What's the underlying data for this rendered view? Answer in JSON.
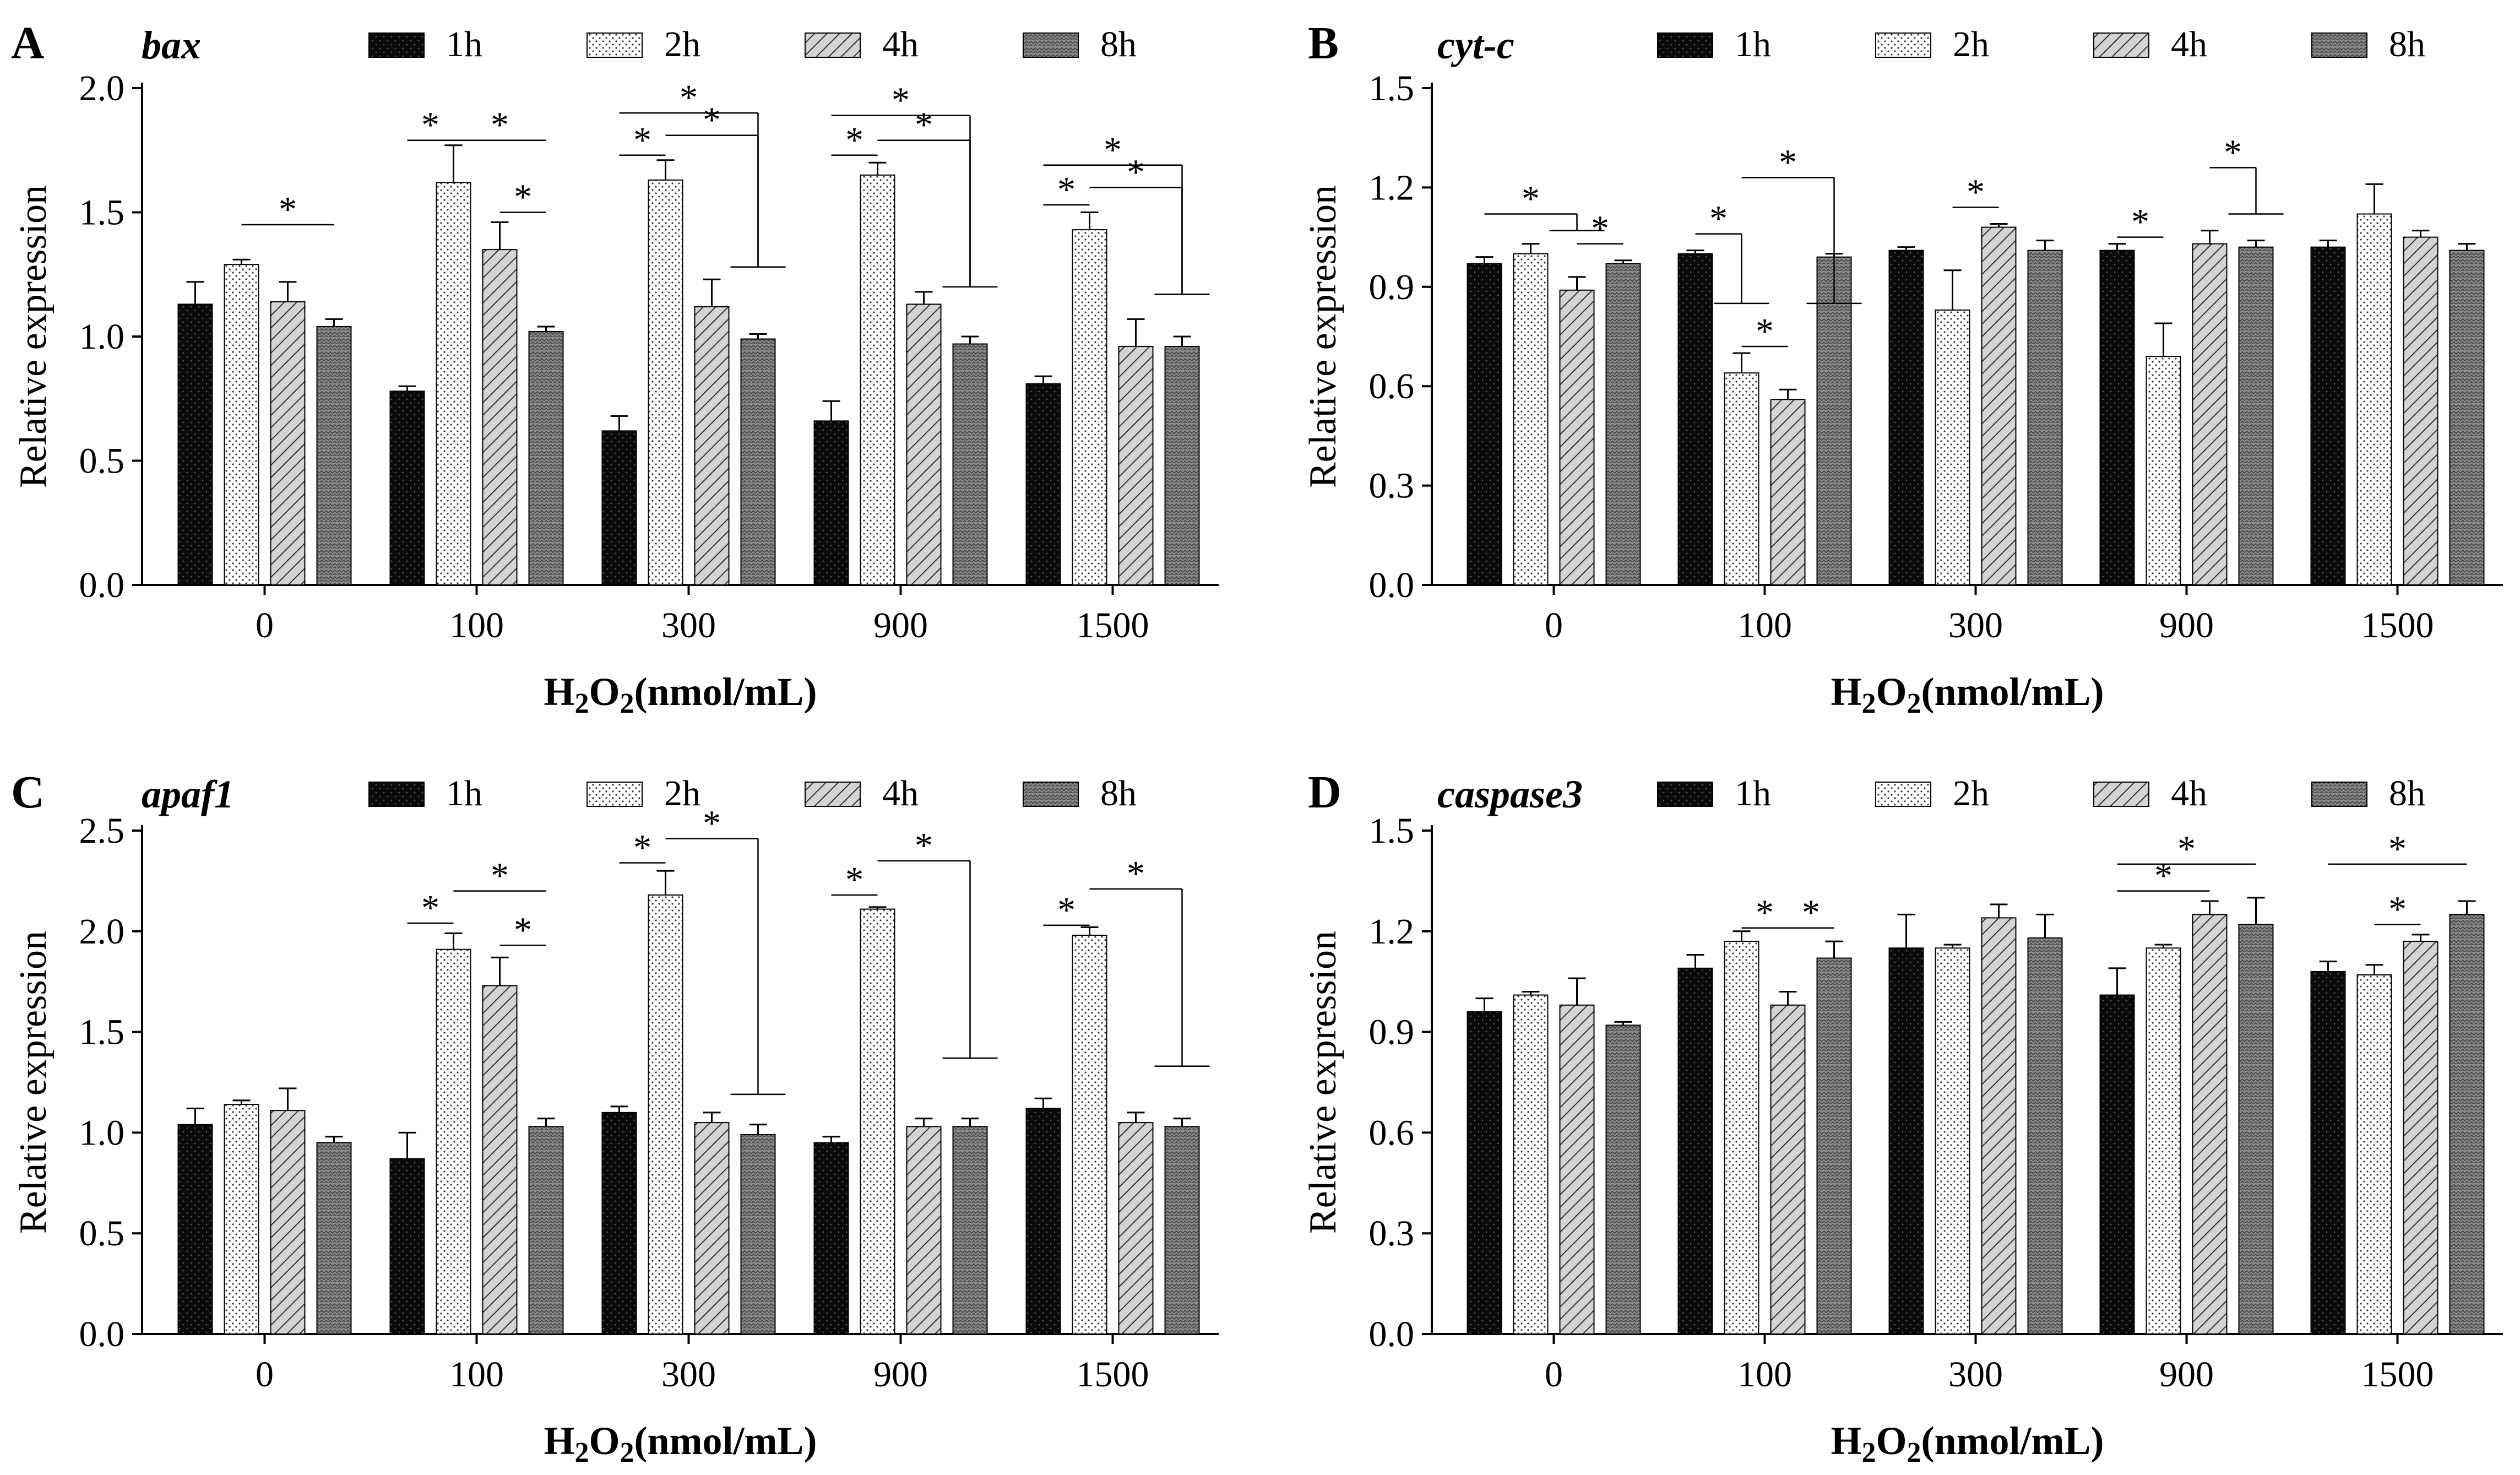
{
  "chart_data": [
    {
      "type": "bar",
      "panel": "A",
      "gene": "bax",
      "categories": [
        "0",
        "100",
        "300",
        "900",
        "1500"
      ],
      "ylabel": "Relative expression",
      "xlabel": "H2O2(nmol/mL)",
      "ylim": [
        0,
        2.0
      ],
      "yticks": [
        "0.0",
        "0.5",
        "1.0",
        "1.5",
        "2.0"
      ],
      "legend": [
        "1h",
        "2h",
        "4h",
        "8h"
      ],
      "series": [
        {
          "name": "1h",
          "values": [
            1.13,
            0.78,
            0.62,
            0.66,
            0.81
          ],
          "errors": [
            0.09,
            0.02,
            0.06,
            0.08,
            0.03
          ]
        },
        {
          "name": "2h",
          "values": [
            1.29,
            1.62,
            1.63,
            1.65,
            1.43
          ],
          "errors": [
            0.02,
            0.15,
            0.08,
            0.05,
            0.07
          ]
        },
        {
          "name": "4h",
          "values": [
            1.14,
            1.35,
            1.12,
            1.13,
            0.96
          ],
          "errors": [
            0.08,
            0.11,
            0.11,
            0.05,
            0.11
          ]
        },
        {
          "name": "8h",
          "values": [
            1.04,
            1.02,
            0.99,
            0.97,
            0.96
          ],
          "errors": [
            0.03,
            0.02,
            0.02,
            0.03,
            0.04
          ]
        }
      ],
      "significance": [
        {
          "cat": 0,
          "from": 1,
          "to": 3,
          "level": 1.45,
          "label": "*"
        },
        {
          "cat": 1,
          "from": 0,
          "to": 1,
          "level": 1.79,
          "label": "*"
        },
        {
          "cat": 1,
          "from": 1,
          "to": 3,
          "level": 1.79,
          "label": "*"
        },
        {
          "cat": 1,
          "from": 2,
          "to": 3,
          "level": 1.5,
          "label": "*"
        },
        {
          "cat": 2,
          "from": 0,
          "to": 1,
          "level": 1.73,
          "label": "*"
        },
        {
          "cat": 2,
          "from": 0,
          "to": 3,
          "level": 1.9,
          "drop": 1.28,
          "label": "*"
        },
        {
          "cat": 2,
          "from": 1,
          "to": 3,
          "level": 1.81,
          "drop": 1.28,
          "label": "*"
        },
        {
          "cat": 3,
          "from": 0,
          "to": 1,
          "level": 1.73,
          "label": "*"
        },
        {
          "cat": 3,
          "from": 0,
          "to": 3,
          "level": 1.89,
          "drop": 1.2,
          "label": "*"
        },
        {
          "cat": 3,
          "from": 1,
          "to": 3,
          "level": 1.79,
          "drop": 1.2,
          "label": "*"
        },
        {
          "cat": 4,
          "from": 0,
          "to": 1,
          "level": 1.53,
          "label": "*"
        },
        {
          "cat": 4,
          "from": 0,
          "to": 3,
          "level": 1.69,
          "drop": 1.17,
          "label": "*"
        },
        {
          "cat": 4,
          "from": 1,
          "to": 3,
          "level": 1.6,
          "drop": 1.17,
          "label": "*"
        }
      ]
    },
    {
      "type": "bar",
      "panel": "B",
      "gene": "cyt-c",
      "categories": [
        "0",
        "100",
        "300",
        "900",
        "1500"
      ],
      "ylabel": "Relative expression",
      "xlabel": "H2O2(nmol/mL)",
      "ylim": [
        0,
        1.5
      ],
      "yticks": [
        "0.0",
        "0.3",
        "0.6",
        "0.9",
        "1.2",
        "1.5"
      ],
      "legend": [
        "1h",
        "2h",
        "4h",
        "8h"
      ],
      "series": [
        {
          "name": "1h",
          "values": [
            0.97,
            1.0,
            1.01,
            1.01,
            1.02
          ],
          "errors": [
            0.02,
            0.01,
            0.01,
            0.02,
            0.02
          ]
        },
        {
          "name": "2h",
          "values": [
            1.0,
            0.64,
            0.83,
            0.69,
            1.12
          ],
          "errors": [
            0.03,
            0.06,
            0.12,
            0.1,
            0.09
          ]
        },
        {
          "name": "4h",
          "values": [
            0.89,
            0.56,
            1.08,
            1.03,
            1.05
          ],
          "errors": [
            0.04,
            0.03,
            0.01,
            0.04,
            0.02
          ]
        },
        {
          "name": "8h",
          "values": [
            0.97,
            0.99,
            1.01,
            1.02,
            1.01
          ],
          "errors": [
            0.01,
            0.01,
            0.03,
            0.02,
            0.02
          ]
        }
      ],
      "significance": [
        {
          "cat": 0,
          "from": 0,
          "to": 2,
          "level": 1.12,
          "drop": 1.07,
          "label": "*"
        },
        {
          "cat": 0,
          "from": 2,
          "to": 3,
          "level": 1.03,
          "label": "*"
        },
        {
          "cat": 1,
          "from": 0,
          "to": 1,
          "level": 1.06,
          "drop": 0.85,
          "label": "*"
        },
        {
          "cat": 1,
          "from": 1,
          "to": 3,
          "level": 1.23,
          "drop": 0.85,
          "label": "*"
        },
        {
          "cat": 1,
          "from": 1,
          "to": 2,
          "level": 0.72,
          "label": "*"
        },
        {
          "cat": 2,
          "from": 1,
          "to": 2,
          "level": 1.14,
          "label": "*"
        },
        {
          "cat": 3,
          "from": 0,
          "to": 1,
          "level": 1.05,
          "label": "*"
        },
        {
          "cat": 3,
          "from": 2,
          "to": 3,
          "level": 1.26,
          "drop": 1.12,
          "label": "*"
        }
      ]
    },
    {
      "type": "bar",
      "panel": "C",
      "gene": "apaf1",
      "categories": [
        "0",
        "100",
        "300",
        "900",
        "1500"
      ],
      "ylabel": "Relative expression",
      "xlabel": "H2O2(nmol/mL)",
      "ylim": [
        0,
        2.5
      ],
      "yticks": [
        "0.0",
        "0.5",
        "1.0",
        "1.5",
        "2.0",
        "2.5"
      ],
      "legend": [
        "1h",
        "2h",
        "4h",
        "8h"
      ],
      "series": [
        {
          "name": "1h",
          "values": [
            1.04,
            0.87,
            1.1,
            0.95,
            1.12
          ],
          "errors": [
            0.08,
            0.13,
            0.03,
            0.03,
            0.05
          ]
        },
        {
          "name": "2h",
          "values": [
            1.14,
            1.91,
            2.18,
            2.11,
            1.98
          ],
          "errors": [
            0.02,
            0.08,
            0.12,
            0.01,
            0.04
          ]
        },
        {
          "name": "4h",
          "values": [
            1.11,
            1.73,
            1.05,
            1.03,
            1.05
          ],
          "errors": [
            0.11,
            0.14,
            0.05,
            0.04,
            0.05
          ]
        },
        {
          "name": "8h",
          "values": [
            0.95,
            1.03,
            0.99,
            1.03,
            1.03
          ],
          "errors": [
            0.03,
            0.04,
            0.05,
            0.04,
            0.04
          ]
        }
      ],
      "significance": [
        {
          "cat": 1,
          "from": 0,
          "to": 1,
          "level": 2.04,
          "label": "*"
        },
        {
          "cat": 1,
          "from": 1,
          "to": 3,
          "level": 2.2,
          "label": "*"
        },
        {
          "cat": 1,
          "from": 2,
          "to": 3,
          "level": 1.93,
          "label": "*"
        },
        {
          "cat": 2,
          "from": 0,
          "to": 1,
          "level": 2.34,
          "label": "*"
        },
        {
          "cat": 2,
          "from": 1,
          "to": 3,
          "level": 2.46,
          "drop": 1.19,
          "label": "*"
        },
        {
          "cat": 3,
          "from": 0,
          "to": 1,
          "level": 2.18,
          "label": "*"
        },
        {
          "cat": 3,
          "from": 1,
          "to": 3,
          "level": 2.35,
          "drop": 1.37,
          "label": "*"
        },
        {
          "cat": 4,
          "from": 0,
          "to": 1,
          "level": 2.03,
          "label": "*"
        },
        {
          "cat": 4,
          "from": 1,
          "to": 3,
          "level": 2.21,
          "drop": 1.33,
          "label": "*"
        }
      ]
    },
    {
      "type": "bar",
      "panel": "D",
      "gene": "caspase3",
      "categories": [
        "0",
        "100",
        "300",
        "900",
        "1500"
      ],
      "ylabel": "Relative expression",
      "xlabel": "H2O2(nmol/mL)",
      "ylim": [
        0,
        1.5
      ],
      "yticks": [
        "0.0",
        "0.3",
        "0.6",
        "0.9",
        "1.2",
        "1.5"
      ],
      "legend": [
        "1h",
        "2h",
        "4h",
        "8h"
      ],
      "series": [
        {
          "name": "1h",
          "values": [
            0.96,
            1.09,
            1.15,
            1.01,
            1.08
          ],
          "errors": [
            0.04,
            0.04,
            0.1,
            0.08,
            0.03
          ]
        },
        {
          "name": "2h",
          "values": [
            1.01,
            1.17,
            1.15,
            1.15,
            1.07
          ],
          "errors": [
            0.01,
            0.03,
            0.01,
            0.01,
            0.03
          ]
        },
        {
          "name": "4h",
          "values": [
            0.98,
            0.98,
            1.24,
            1.25,
            1.17
          ],
          "errors": [
            0.08,
            0.04,
            0.04,
            0.04,
            0.02
          ]
        },
        {
          "name": "8h",
          "values": [
            0.92,
            1.12,
            1.18,
            1.22,
            1.25
          ],
          "errors": [
            0.01,
            0.05,
            0.07,
            0.08,
            0.04
          ]
        }
      ],
      "significance": [
        {
          "cat": 1,
          "from": 1,
          "to": 2,
          "level": 1.21,
          "label": "*"
        },
        {
          "cat": 1,
          "from": 2,
          "to": 3,
          "level": 1.21,
          "label": "*"
        },
        {
          "cat": 3,
          "from": 0,
          "to": 2,
          "level": 1.32,
          "label": "*"
        },
        {
          "cat": 3,
          "from": 0,
          "to": 3,
          "level": 1.4,
          "label": "*"
        },
        {
          "cat": 4,
          "from": 0,
          "to": 3,
          "level": 1.4,
          "label": "*"
        },
        {
          "cat": 4,
          "from": 1,
          "to": 2,
          "level": 1.22,
          "label": "*"
        }
      ]
    }
  ]
}
